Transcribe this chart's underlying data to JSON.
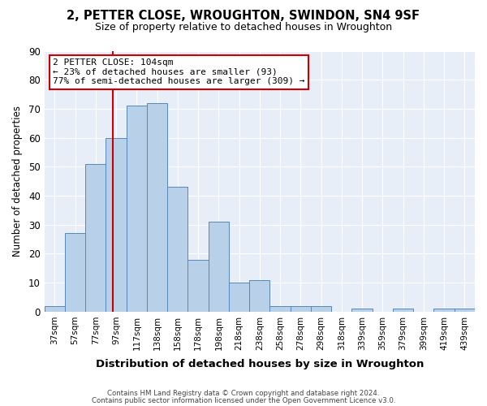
{
  "title_display": "2, PETTER CLOSE, WROUGHTON, SWINDON, SN4 9SF",
  "subtitle": "Size of property relative to detached houses in Wroughton",
  "xlabel": "Distribution of detached houses by size in Wroughton",
  "ylabel": "Number of detached properties",
  "bar_labels": [
    "37sqm",
    "57sqm",
    "77sqm",
    "97sqm",
    "117sqm",
    "138sqm",
    "158sqm",
    "178sqm",
    "198sqm",
    "218sqm",
    "238sqm",
    "258sqm",
    "278sqm",
    "298sqm",
    "318sqm",
    "339sqm",
    "359sqm",
    "379sqm",
    "399sqm",
    "419sqm",
    "439sqm"
  ],
  "bar_values": [
    2,
    27,
    51,
    60,
    71,
    72,
    43,
    18,
    31,
    10,
    11,
    2,
    2,
    2,
    0,
    1,
    0,
    1,
    0,
    1,
    1
  ],
  "bar_color": "#b8d0e8",
  "bar_edgecolor": "#5588bb",
  "ylim": [
    0,
    90
  ],
  "yticks": [
    0,
    10,
    20,
    30,
    40,
    50,
    60,
    70,
    80,
    90
  ],
  "property_line_color": "#cc0000",
  "annotation_title": "2 PETTER CLOSE: 104sqm",
  "annotation_line1": "← 23% of detached houses are smaller (93)",
  "annotation_line2": "77% of semi-detached houses are larger (309) →",
  "annotation_box_color": "#ffffff",
  "annotation_box_edgecolor": "#cc0000",
  "footer1": "Contains HM Land Registry data © Crown copyright and database right 2024.",
  "footer2": "Contains public sector information licensed under the Open Government Licence v3.0.",
  "fig_width": 6.0,
  "fig_height": 5.0,
  "bg_color": "#e8eef8"
}
